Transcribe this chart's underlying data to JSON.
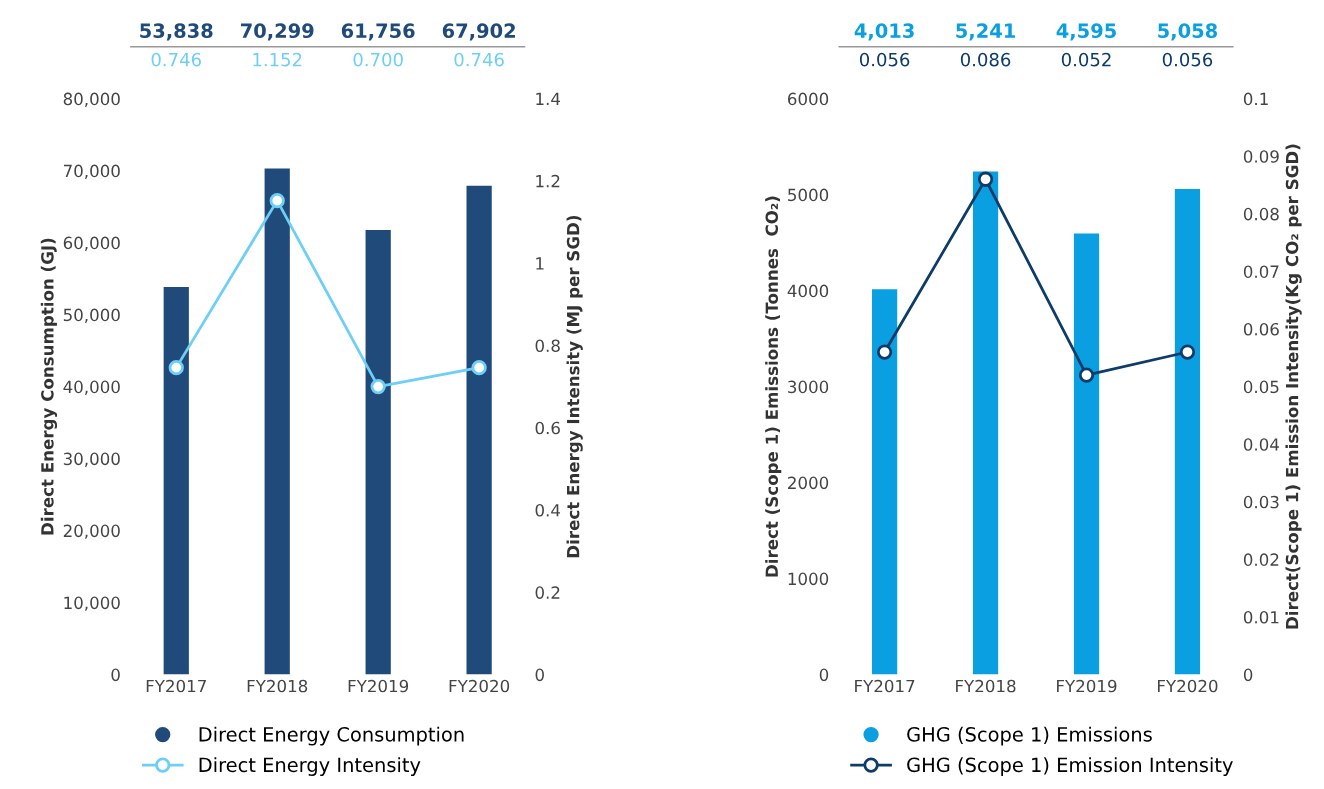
{
  "chart_data": [
    {
      "type": "bar",
      "categories": [
        "FY2017",
        "FY2018",
        "FY2019",
        "FY2020"
      ],
      "ylabel": "Direct Energy Consumption (GJ)",
      "y2label": "Direct Energy Intensity (MJ per SGD)",
      "ylim": [
        0,
        80000
      ],
      "yticks": [
        {
          "value": 0,
          "label": "0"
        },
        {
          "value": 10000,
          "label": "10,000"
        },
        {
          "value": 20000,
          "label": "20,000"
        },
        {
          "value": 30000,
          "label": "30,000"
        },
        {
          "value": 40000,
          "label": "40,000"
        },
        {
          "value": 50000,
          "label": "50,000"
        },
        {
          "value": 60000,
          "label": "60,000"
        },
        {
          "value": 70000,
          "label": "70,000"
        },
        {
          "value": 80000,
          "label": "80,000"
        }
      ],
      "y2lim": [
        0,
        1.4
      ],
      "y2ticks": [
        0,
        0.2,
        0.4,
        0.6,
        0.8,
        {
          "value": 1.0,
          "label": "1"
        },
        1.2,
        1.4
      ],
      "grid": false,
      "legend": "bottom",
      "marker": "circle",
      "series": [
        {
          "name": "Direct Energy Consumption",
          "color": "#1f4a7a",
          "values": [
            53838,
            70299,
            61756,
            67902
          ],
          "value_labels": [
            "53,838",
            "70,299",
            "61,756",
            "67,902"
          ]
        },
        {
          "name": "Direct Energy Intensity",
          "type": "line",
          "axis": "y2",
          "color": "#6dcff6",
          "values": [
            0.746,
            1.152,
            0.7,
            0.746
          ],
          "value_labels": [
            "0.746",
            "1.152",
            "0.700",
            "0.746"
          ]
        }
      ]
    },
    {
      "type": "bar",
      "categories": [
        "FY2017",
        "FY2018",
        "FY2019",
        "FY2020"
      ],
      "ylabel": "Direct (Scope 1) Emissions (Tonnes  CO₂)",
      "y2label": "Direct(Scope 1) Emission Intensity(Kg CO₂ per SGD)",
      "ylim": [
        0,
        6000
      ],
      "yticks": [
        0,
        1000,
        2000,
        3000,
        4000,
        5000,
        6000
      ],
      "y2lim": [
        0,
        0.1
      ],
      "y2ticks": [
        0,
        0.01,
        0.02,
        0.03,
        0.04,
        0.05,
        0.06,
        0.07,
        0.08,
        0.09,
        0.1
      ],
      "grid": false,
      "legend": "bottom",
      "marker": "circle",
      "series": [
        {
          "name": "GHG (Scope 1) Emissions",
          "color": "#0a9fe0",
          "values": [
            4013,
            5241,
            4595,
            5058
          ],
          "value_labels": [
            "4,013",
            "5,241",
            "4,595",
            "5,058"
          ]
        },
        {
          "name": "GHG (Scope 1) Emission Intensity",
          "type": "line",
          "axis": "y2",
          "color": "#0d3c6b",
          "values": [
            0.056,
            0.086,
            0.052,
            0.056
          ],
          "value_labels": [
            "0.056",
            "0.086",
            "0.052",
            "0.056"
          ]
        }
      ]
    }
  ]
}
